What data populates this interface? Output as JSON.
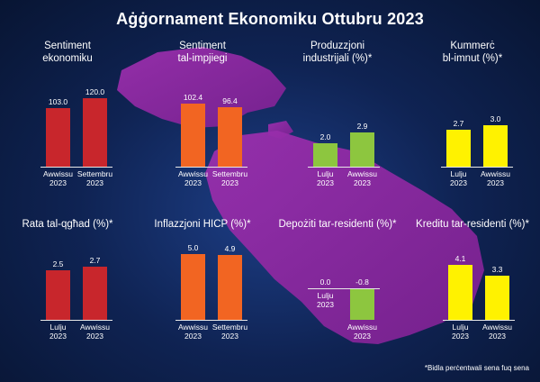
{
  "title": "Aġġornament Ekonomiku Ottubru 2023",
  "footnote": "*Bidla perċentwali sena fuq sena",
  "colors": {
    "red": "#c8262c",
    "orange": "#f26522",
    "green": "#8dc63f",
    "yellow": "#fff200",
    "map": "#8a2a9c"
  },
  "chart_data": [
    {
      "type": "bar",
      "title": "Sentiment\nekonomiku",
      "categories": [
        "Awwissu\n2023",
        "Settembru\n2023"
      ],
      "values": [
        103.0,
        120.0
      ],
      "labels": [
        "103.0",
        "120.0"
      ],
      "color": "red"
    },
    {
      "type": "bar",
      "title": "Sentiment\ntal-impjiegi",
      "categories": [
        "Awwissu\n2023",
        "Settembru\n2023"
      ],
      "values": [
        102.4,
        96.4
      ],
      "labels": [
        "102.4",
        "96.4"
      ],
      "color": "orange"
    },
    {
      "type": "bar",
      "title": "Produzzjoni\nindustrijali (%)*",
      "categories": [
        "Lulju\n2023",
        "Awwissu\n2023"
      ],
      "values": [
        2.0,
        2.9
      ],
      "labels": [
        "2.0",
        "2.9"
      ],
      "color": "green"
    },
    {
      "type": "bar",
      "title": "Kummerċ\nbl-imnut (%)*",
      "categories": [
        "Lulju\n2023",
        "Awwissu\n2023"
      ],
      "values": [
        2.7,
        3.0
      ],
      "labels": [
        "2.7",
        "3.0"
      ],
      "color": "yellow"
    },
    {
      "type": "bar",
      "title": "Rata tal-qgħad (%)*",
      "categories": [
        "Lulju\n2023",
        "Awwissu\n2023"
      ],
      "values": [
        2.5,
        2.7
      ],
      "labels": [
        "2.5",
        "2.7"
      ],
      "color": "red"
    },
    {
      "type": "bar",
      "title": "Inflazzjoni HICP (%)*",
      "categories": [
        "Awwissu\n2023",
        "Settembru\n2023"
      ],
      "values": [
        5.0,
        4.9
      ],
      "labels": [
        "5.0",
        "4.9"
      ],
      "color": "orange"
    },
    {
      "type": "bar",
      "title": "Depożiti tar-residenti (%)*",
      "categories": [
        "Lulju\n2023",
        "Awwissu\n2023"
      ],
      "values": [
        0.0,
        -0.8
      ],
      "labels": [
        "0.0",
        "-0.8"
      ],
      "color": "green"
    },
    {
      "type": "bar",
      "title": "Kreditu tar-residenti (%)*",
      "categories": [
        "Lulju\n2023",
        "Awwissu\n2023"
      ],
      "values": [
        4.1,
        3.3
      ],
      "labels": [
        "4.1",
        "3.3"
      ],
      "color": "yellow"
    }
  ]
}
